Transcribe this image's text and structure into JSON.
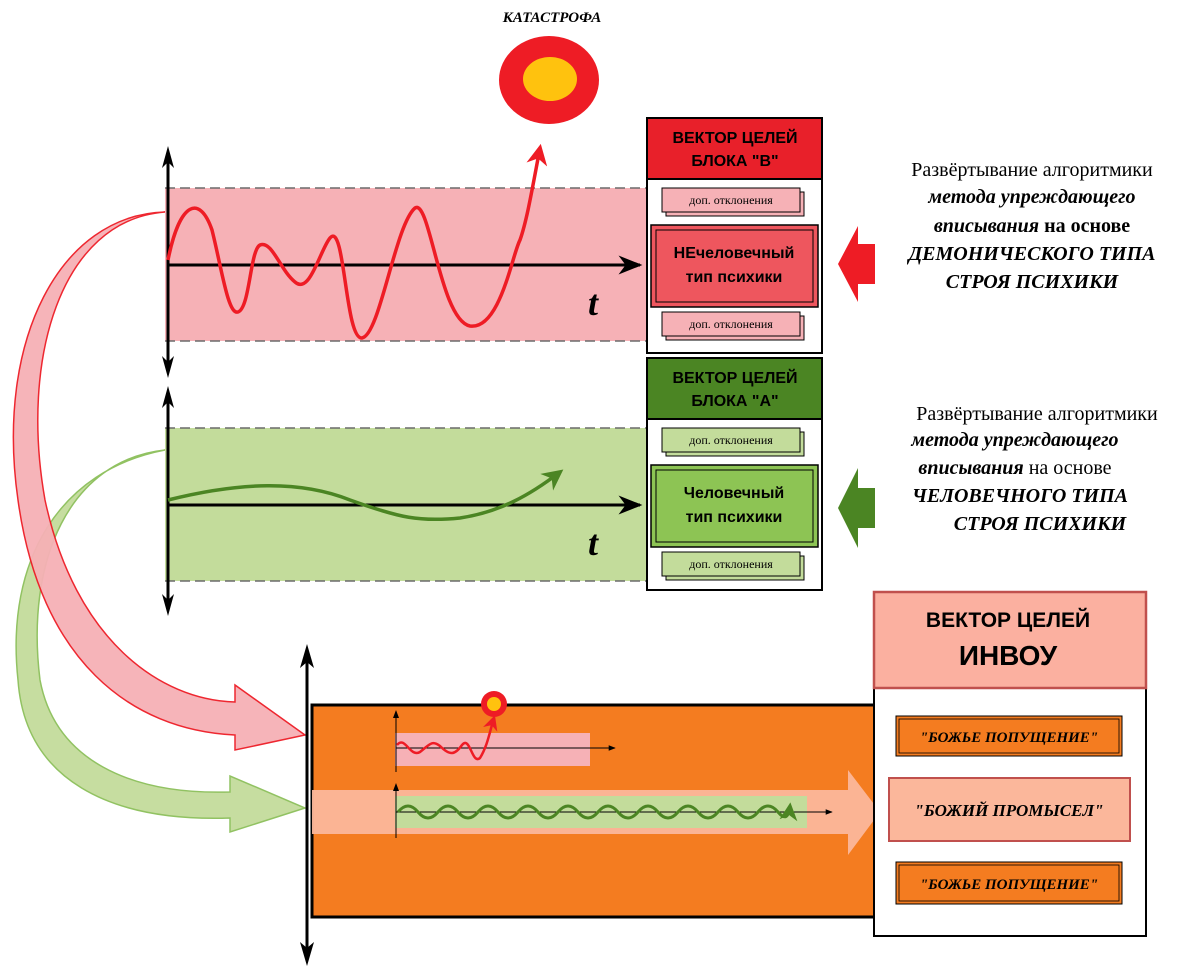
{
  "catastrophe_label": "КАТАСТРОФА",
  "axis_label": "t",
  "block_b": {
    "header_line1": "ВЕКТОР ЦЕЛЕЙ",
    "header_line2": "БЛОКА \"В\"",
    "deviation_top": "доп. отклонения",
    "deviation_bottom": "доп. отклонения",
    "type_line1": "НЕчеловечный",
    "type_line2": "тип психики",
    "desc_line1": "Развёртывание алгоритмики",
    "desc_line2": "метода упреждающего",
    "desc_line3a": "вписывания",
    "desc_line3b": " на основе",
    "desc_line4": "ДЕМОНИЧЕСКОГО ТИПА",
    "desc_line5": "СТРОЯ ПСИХИКИ"
  },
  "block_a": {
    "header_line1": "ВЕКТОР ЦЕЛЕЙ",
    "header_line2": "БЛОКА \"А\"",
    "deviation_top": "доп. отклонения",
    "deviation_bottom": "доп. отклонения",
    "type_line1": "Человечный",
    "type_line2": "тип психики",
    "desc_line1": "Развёртывание алгоритмики",
    "desc_line2": "метода упреждающего",
    "desc_line3a": "вписывания",
    "desc_line3b": " на основе",
    "desc_line4": "ЧЕЛОВЕЧНОГО ТИПА",
    "desc_line5": "СТРОЯ ПСИХИКИ"
  },
  "invou": {
    "header_line1": "ВЕКТОР ЦЕЛЕЙ",
    "header_line2": "ИНВОУ",
    "item_top": "\"БОЖЬЕ ПОПУЩЕНИЕ\"",
    "item_middle": "\"БОЖИЙ ПРОМЫСЕЛ\"",
    "item_bottom": "\"БОЖЬЕ ПОПУЩЕНИЕ\""
  },
  "colors": {
    "red_band": "#f6b1b6",
    "red_line": "#ee1c25",
    "green_band": "#c3dc9b",
    "green_line": "#4b8523",
    "orange": "#f47c20",
    "peach": "#fbb79b",
    "catastrophe_outer": "#ee1c25",
    "catastrophe_inner": "#ffc20e"
  }
}
